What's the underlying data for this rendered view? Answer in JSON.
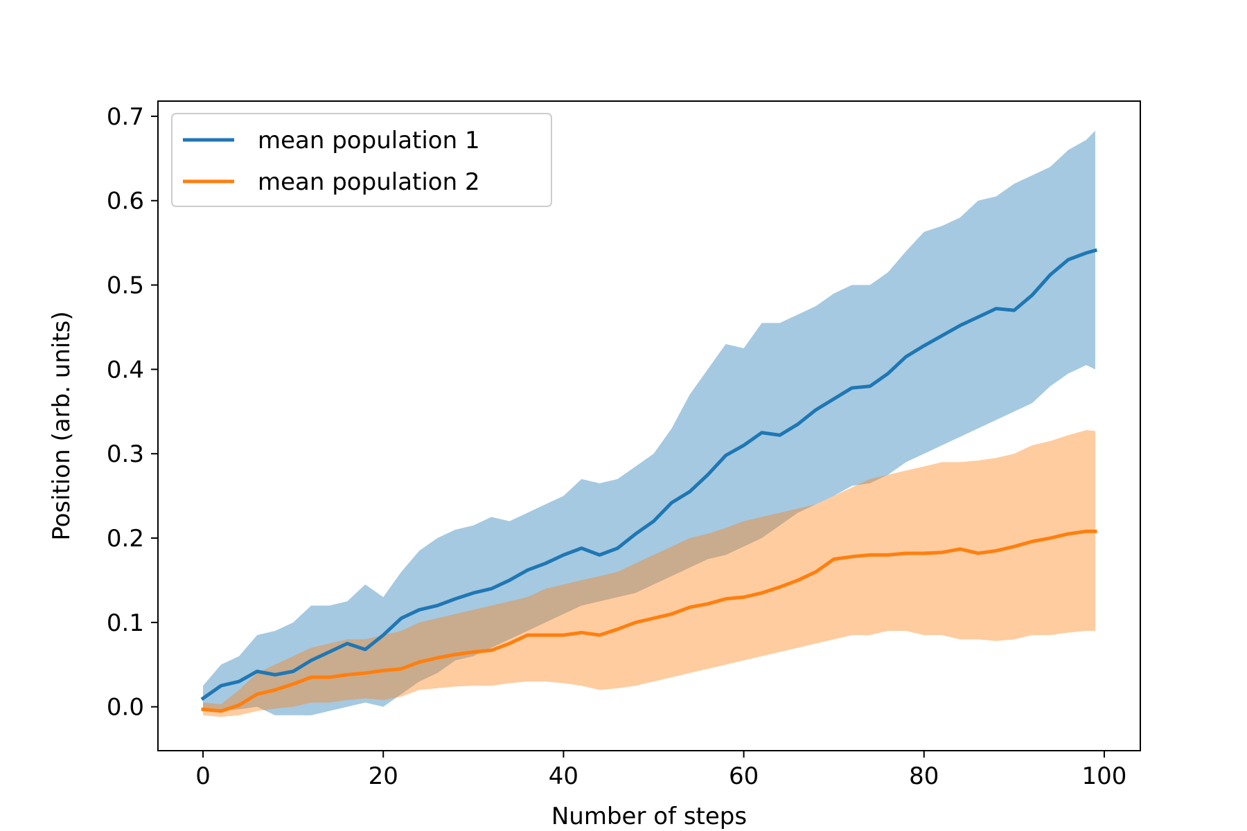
{
  "chart_data": {
    "type": "line",
    "title": "",
    "xlabel": "Number of steps",
    "ylabel": "Position (arb. units)",
    "xlim": [
      -5,
      104
    ],
    "ylim": [
      -0.052,
      0.718
    ],
    "xticks": [
      0,
      20,
      40,
      60,
      80,
      100
    ],
    "xtick_labels": [
      "0",
      "20",
      "40",
      "60",
      "80",
      "100"
    ],
    "yticks": [
      0.0,
      0.1,
      0.2,
      0.3,
      0.4,
      0.5,
      0.6,
      0.7
    ],
    "ytick_labels": [
      "0.0",
      "0.1",
      "0.2",
      "0.3",
      "0.4",
      "0.5",
      "0.6",
      "0.7"
    ],
    "grid": false,
    "legend_position": "top-left",
    "series": [
      {
        "name": "mean population 1",
        "color": "#1f77b4",
        "band_color": "#1f77b4",
        "x": [
          0,
          2,
          4,
          6,
          8,
          10,
          12,
          14,
          16,
          18,
          20,
          22,
          24,
          26,
          28,
          30,
          32,
          34,
          36,
          38,
          40,
          42,
          44,
          46,
          48,
          50,
          52,
          54,
          56,
          58,
          60,
          62,
          64,
          66,
          68,
          70,
          72,
          74,
          76,
          78,
          80,
          82,
          84,
          86,
          88,
          90,
          92,
          94,
          96,
          98,
          99
        ],
        "mean": [
          0.01,
          0.025,
          0.03,
          0.042,
          0.038,
          0.042,
          0.055,
          0.065,
          0.075,
          0.068,
          0.085,
          0.105,
          0.115,
          0.12,
          0.128,
          0.135,
          0.14,
          0.15,
          0.162,
          0.17,
          0.18,
          0.188,
          0.18,
          0.188,
          0.205,
          0.22,
          0.242,
          0.255,
          0.275,
          0.298,
          0.31,
          0.325,
          0.322,
          0.335,
          0.352,
          0.365,
          0.378,
          0.38,
          0.395,
          0.415,
          0.428,
          0.44,
          0.452,
          0.462,
          0.472,
          0.47,
          0.488,
          0.512,
          0.53,
          0.538,
          0.541
        ],
        "upper": [
          0.025,
          0.05,
          0.06,
          0.085,
          0.09,
          0.1,
          0.12,
          0.12,
          0.125,
          0.145,
          0.13,
          0.16,
          0.185,
          0.2,
          0.21,
          0.215,
          0.225,
          0.22,
          0.23,
          0.24,
          0.25,
          0.27,
          0.265,
          0.27,
          0.285,
          0.3,
          0.33,
          0.37,
          0.4,
          0.43,
          0.425,
          0.455,
          0.455,
          0.465,
          0.475,
          0.49,
          0.5,
          0.5,
          0.515,
          0.54,
          0.563,
          0.57,
          0.58,
          0.6,
          0.605,
          0.62,
          0.63,
          0.64,
          0.66,
          0.672,
          0.683
        ],
        "lower": [
          -0.005,
          -0.005,
          -0.003,
          0.0,
          -0.01,
          -0.01,
          -0.01,
          -0.005,
          0.0,
          0.005,
          0.0,
          0.015,
          0.03,
          0.04,
          0.055,
          0.06,
          0.07,
          0.08,
          0.09,
          0.1,
          0.11,
          0.12,
          0.125,
          0.13,
          0.135,
          0.145,
          0.155,
          0.165,
          0.175,
          0.18,
          0.19,
          0.2,
          0.215,
          0.23,
          0.24,
          0.25,
          0.262,
          0.265,
          0.275,
          0.29,
          0.3,
          0.31,
          0.32,
          0.33,
          0.34,
          0.35,
          0.36,
          0.38,
          0.395,
          0.405,
          0.4
        ]
      },
      {
        "name": "mean population 2",
        "color": "#ff7f0e",
        "band_color": "#ff7f0e",
        "x": [
          0,
          2,
          4,
          6,
          8,
          10,
          12,
          14,
          16,
          18,
          20,
          22,
          24,
          26,
          28,
          30,
          32,
          34,
          36,
          38,
          40,
          42,
          44,
          46,
          48,
          50,
          52,
          54,
          56,
          58,
          60,
          62,
          64,
          66,
          68,
          70,
          72,
          74,
          76,
          78,
          80,
          82,
          84,
          86,
          88,
          90,
          92,
          94,
          96,
          98,
          99
        ],
        "mean": [
          -0.003,
          -0.005,
          0.002,
          0.015,
          0.02,
          0.027,
          0.035,
          0.035,
          0.038,
          0.04,
          0.043,
          0.045,
          0.053,
          0.058,
          0.062,
          0.065,
          0.067,
          0.075,
          0.085,
          0.085,
          0.085,
          0.088,
          0.085,
          0.092,
          0.1,
          0.105,
          0.11,
          0.118,
          0.122,
          0.128,
          0.13,
          0.135,
          0.142,
          0.15,
          0.16,
          0.175,
          0.178,
          0.18,
          0.18,
          0.182,
          0.182,
          0.183,
          0.187,
          0.182,
          0.185,
          0.19,
          0.196,
          0.2,
          0.205,
          0.208,
          0.208
        ],
        "upper": [
          0.005,
          0.003,
          0.02,
          0.04,
          0.05,
          0.06,
          0.07,
          0.075,
          0.08,
          0.08,
          0.085,
          0.09,
          0.1,
          0.105,
          0.11,
          0.115,
          0.12,
          0.125,
          0.13,
          0.14,
          0.145,
          0.15,
          0.155,
          0.16,
          0.17,
          0.18,
          0.19,
          0.2,
          0.205,
          0.212,
          0.22,
          0.225,
          0.23,
          0.235,
          0.24,
          0.25,
          0.26,
          0.27,
          0.275,
          0.28,
          0.285,
          0.29,
          0.29,
          0.292,
          0.295,
          0.3,
          0.31,
          0.315,
          0.322,
          0.328,
          0.327
        ],
        "lower": [
          -0.01,
          -0.012,
          -0.01,
          -0.005,
          -0.002,
          0.0,
          0.005,
          0.005,
          0.008,
          0.01,
          0.008,
          0.012,
          0.02,
          0.022,
          0.024,
          0.025,
          0.025,
          0.028,
          0.03,
          0.03,
          0.028,
          0.025,
          0.02,
          0.022,
          0.025,
          0.03,
          0.035,
          0.04,
          0.045,
          0.05,
          0.055,
          0.06,
          0.065,
          0.07,
          0.075,
          0.08,
          0.085,
          0.085,
          0.09,
          0.09,
          0.085,
          0.085,
          0.08,
          0.08,
          0.078,
          0.08,
          0.085,
          0.085,
          0.088,
          0.09,
          0.09
        ]
      }
    ]
  }
}
